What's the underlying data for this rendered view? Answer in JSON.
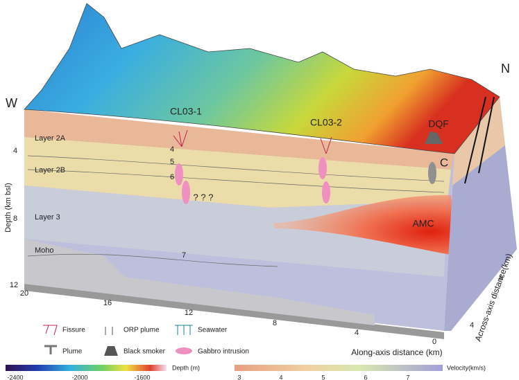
{
  "compass": {
    "west": "W",
    "north": "N"
  },
  "sites": [
    "CL03-1",
    "CL03-2",
    "DQF"
  ],
  "labels": {
    "c": "C",
    "amc": "AMC",
    "unknown": "? ? ?"
  },
  "layers": [
    "Layer 2A",
    "Layer 2B",
    "Layer 3",
    "Moho"
  ],
  "contours": [
    4,
    5,
    6,
    7
  ],
  "depth_axis": {
    "title": "Depth (km bsl)",
    "ticks": [
      4,
      8,
      12
    ]
  },
  "along_axis": {
    "title": "Along-axis distance (km)",
    "ticks": [
      20,
      16,
      12,
      8,
      4,
      0
    ]
  },
  "across_axis": {
    "title": "Across-axis distance(km)",
    "ticks": [
      4,
      8
    ]
  },
  "legend": [
    "Fissure",
    "Plume",
    "ORP plume",
    "Black smoker",
    "Seawater",
    "Gabbro intrusion"
  ],
  "depth_colorbar": {
    "title": "Depth (m)",
    "ticks": [
      -2400,
      -2000,
      -1600
    ]
  },
  "velocity_colorbar": {
    "title": "Velocity(km/s)",
    "ticks": [
      3,
      4,
      5,
      6,
      7
    ]
  }
}
